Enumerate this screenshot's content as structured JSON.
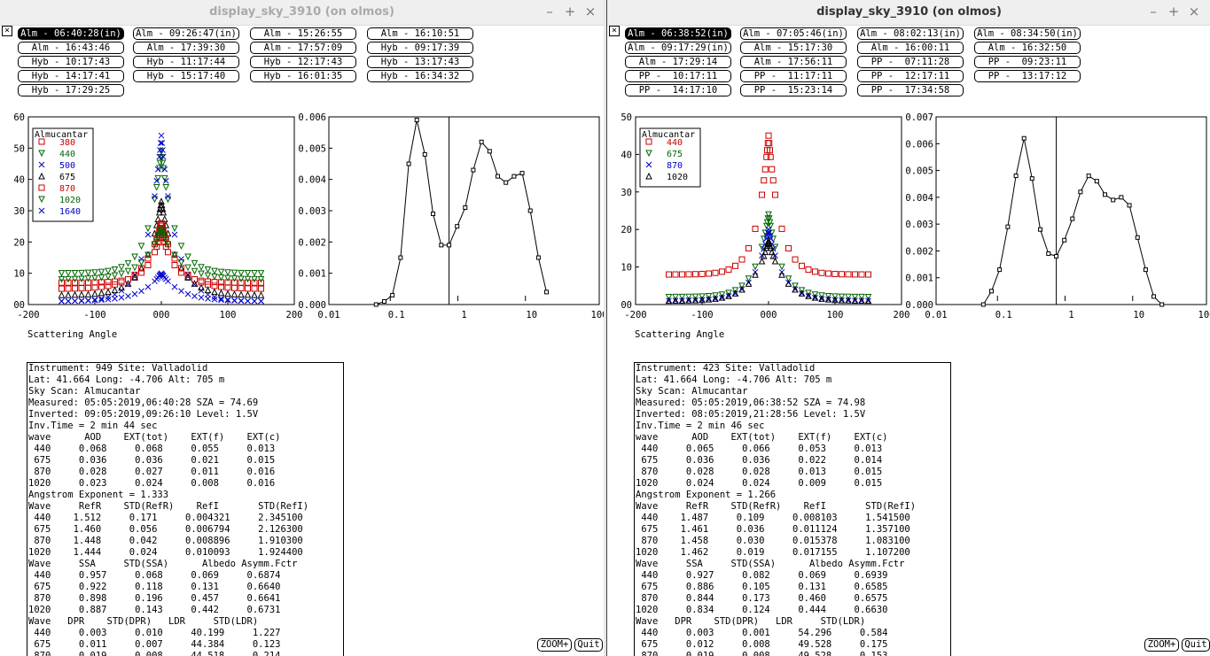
{
  "colors": {
    "red": "#cc0000",
    "green": "#006600",
    "blue": "#0000cc",
    "black": "#000000"
  },
  "windows": [
    {
      "title": "display_sky_3910 (on olmos)",
      "close_glyph": "×",
      "scans": [
        "Alm - 06:40:28(in)",
        "Alm - 09:26:47(in)",
        "Alm - 15:26:55",
        "Alm - 16:10:51",
        "Alm - 16:43:46",
        "Alm - 17:39:30",
        "Alm - 17:57:09",
        "Hyb - 09:17:39",
        "Hyb - 10:17:43",
        "Hyb - 11:17:44",
        "Hyb - 12:17:43",
        "Hyb - 13:17:43",
        "Hyb - 14:17:41",
        "Hyb - 15:17:40",
        "Hyb - 16:01:35",
        "Hyb - 16:34:32",
        "Hyb - 17:29:25"
      ],
      "selected_scan": 0,
      "left_chart": {
        "yticks": [
          "60",
          "50",
          "40",
          "30",
          "20",
          "10",
          "00"
        ],
        "xticks": [
          "-200",
          "-100",
          "000",
          "100",
          "200"
        ],
        "xlabel": "Scattering Angle",
        "legend_title": "Almucantar",
        "legend": [
          "380",
          "440",
          "500",
          "675",
          "870",
          "1020",
          "1640"
        ]
      },
      "right_chart": {
        "yticks": [
          "0.006",
          "0.005",
          "0.004",
          "0.003",
          "0.002",
          "0.001",
          "0.000"
        ],
        "xticks": [
          "0.01",
          "0.1",
          "1",
          "10",
          "100"
        ]
      },
      "info": [
        "Instrument: 949 Site: Valladolid",
        "Lat: 41.664 Long: -4.706 Alt: 705 m",
        "Sky Scan: Almucantar",
        "Measured: 05:05:2019,06:40:28 SZA = 74.69",
        "Inverted: 09:05:2019,09:26:10 Level: 1.5V",
        "Inv.Time = 2 min 44 sec",
        "wave      AOD    EXT(tot)    EXT(f)    EXT(c)",
        " 440     0.068     0.068     0.055     0.013",
        " 675     0.036     0.036     0.021     0.015",
        " 870     0.028     0.027     0.011     0.016",
        "1020     0.023     0.024     0.008     0.016",
        "Angstrom Exponent = 1.333",
        "Wave     RefR    STD(RefR)    RefI       STD(RefI)",
        " 440    1.512     0.171     0.004321     2.345100",
        " 675    1.460     0.056     0.006794     2.126300",
        " 870    1.448     0.042     0.008896     1.910300",
        "1020    1.444     0.024     0.010093     1.924400",
        "Wave     SSA     STD(SSA)      Albedo Asymm.Fctr",
        " 440     0.957     0.068     0.069     0.6874",
        " 675     0.922     0.118     0.131     0.6640",
        " 870     0.898     0.196     0.457     0.6641",
        "1020     0.887     0.143     0.442     0.6731",
        "Wave   DPR    STD(DPR)   LDR     STD(LDR)",
        " 440     0.003     0.010     40.199     1.227",
        " 675     0.011     0.007     44.384     0.123",
        " 870     0.019     0.008     44.518     0.214"
      ],
      "zoom_label": "ZOOM+",
      "quit_label": "Quit"
    },
    {
      "title": "display_sky_3910 (on olmos)",
      "close_glyph": "×",
      "scans": [
        "Alm - 06:38:52(in)",
        "Alm - 07:05:46(in)",
        "Alm - 08:02:13(in)",
        "Alm - 08:34:50(in)",
        "Alm - 09:17:29(in)",
        "Alm - 15:17:30",
        "Alm - 16:00:11",
        "Alm - 16:32:50",
        "Alm - 17:29:14",
        "Alm - 17:56:11",
        "PP -  07:11:28",
        "PP -  09:23:11",
        "PP -  10:17:11",
        "PP -  11:17:11",
        "PP -  12:17:11",
        "PP -  13:17:12",
        "PP -  14:17:10",
        "PP -  15:23:14",
        "PP -  17:34:58"
      ],
      "selected_scan": 0,
      "left_chart": {
        "yticks": [
          "50",
          "40",
          "30",
          "20",
          "10",
          "00"
        ],
        "xticks": [
          "-200",
          "-100",
          "000",
          "100",
          "200"
        ],
        "xlabel": "Scattering Angle",
        "legend_title": "Almucantar",
        "legend": [
          "440",
          "675",
          "870",
          "1020"
        ]
      },
      "right_chart": {
        "yticks": [
          "0.007",
          "0.006",
          "0.005",
          "0.004",
          "0.003",
          "0.002",
          "0.001",
          "0.000"
        ],
        "xticks": [
          "0.01",
          "0.1",
          "1",
          "10",
          "100"
        ]
      },
      "info": [
        "Instrument: 423 Site: Valladolid",
        "Lat: 41.664 Long: -4.706 Alt: 705 m",
        "Sky Scan: Almucantar",
        "Measured: 05:05:2019,06:38:52 SZA = 74.98",
        "Inverted: 08:05:2019,21:28:56 Level: 1.5V",
        "Inv.Time = 2 min 46 sec",
        "wave      AOD    EXT(tot)    EXT(f)    EXT(c)",
        " 440     0.065     0.066     0.053     0.013",
        " 675     0.036     0.036     0.022     0.014",
        " 870     0.028     0.028     0.013     0.015",
        "1020     0.024     0.024     0.009     0.015",
        "Angstrom Exponent = 1.266",
        "Wave     RefR    STD(RefR)    RefI       STD(RefI)",
        " 440    1.487     0.109     0.008103     1.541500",
        " 675    1.461     0.036     0.011124     1.357100",
        " 870    1.458     0.030     0.015378     1.083100",
        "1020    1.462     0.019     0.017155     1.107200",
        "Wave     SSA     STD(SSA)      Albedo Asymm.Fctr",
        " 440     0.927     0.082     0.069     0.6939",
        " 675     0.886     0.105     0.131     0.6585",
        " 870     0.844     0.173     0.460     0.6575",
        "1020     0.834     0.124     0.444     0.6630",
        "Wave   DPR    STD(DPR)   LDR     STD(LDR)",
        " 440     0.003     0.001     54.296     0.584",
        " 675     0.012     0.008     49.528     0.175",
        " 870     0.019     0.008     49.528     0.153"
      ],
      "zoom_label": "ZOOM+",
      "quit_label": "Quit"
    }
  ],
  "chart_data": [
    {
      "type": "scatter",
      "window": "left",
      "xlabel": "Scattering Angle",
      "xlim": [
        -200,
        200
      ],
      "ylim": [
        0,
        60
      ],
      "legend_title": "Almucantar",
      "series": [
        {
          "name": "380",
          "peak": 24,
          "floor": 7,
          "color": "red",
          "marker": "square"
        },
        {
          "name": "440",
          "peak": 49,
          "floor": 10,
          "color": "green",
          "marker": "triangle-down"
        },
        {
          "name": "500",
          "peak": 54,
          "floor": 1,
          "color": "blue",
          "marker": "x"
        },
        {
          "name": "675",
          "peak": 33,
          "floor": 3,
          "color": "black",
          "marker": "triangle-up"
        },
        {
          "name": "870",
          "peak": 26,
          "floor": 5,
          "color": "red",
          "marker": "square"
        },
        {
          "name": "1020",
          "peak": 24,
          "floor": 8,
          "color": "green",
          "marker": "triangle-down"
        },
        {
          "name": "1640",
          "peak": 10,
          "floor": 1,
          "color": "blue",
          "marker": "x"
        }
      ]
    },
    {
      "type": "line",
      "window": "left",
      "xscale": "log",
      "xlim": [
        0.01,
        100
      ],
      "ylim": [
        0,
        0.006
      ],
      "x": [
        0.05,
        0.066,
        0.087,
        0.115,
        0.152,
        0.2,
        0.263,
        0.348,
        0.46,
        0.6,
        0.79,
        1.04,
        1.37,
        1.81,
        2.39,
        3.15,
        4.16,
        5.49,
        7.24,
        9.55,
        12.6,
        16.6
      ],
      "y": [
        0.0,
        0.0001,
        0.0003,
        0.0015,
        0.0045,
        0.0059,
        0.0048,
        0.0029,
        0.0019,
        0.0019,
        0.0025,
        0.0031,
        0.0043,
        0.0052,
        0.0049,
        0.0041,
        0.0039,
        0.0041,
        0.0042,
        0.003,
        0.0015,
        0.0004
      ]
    },
    {
      "type": "scatter",
      "window": "right",
      "xlabel": "Scattering Angle",
      "xlim": [
        -200,
        200
      ],
      "ylim": [
        0,
        50
      ],
      "legend_title": "Almucantar",
      "series": [
        {
          "name": "440",
          "peak": 45,
          "floor": 8,
          "color": "red",
          "marker": "square"
        },
        {
          "name": "675",
          "peak": 24,
          "floor": 2,
          "color": "green",
          "marker": "triangle-down"
        },
        {
          "name": "870",
          "peak": 20,
          "floor": 1,
          "color": "blue",
          "marker": "x"
        },
        {
          "name": "1020",
          "peak": 17,
          "floor": 1,
          "color": "black",
          "marker": "triangle-up"
        }
      ]
    },
    {
      "type": "line",
      "window": "right",
      "xscale": "log",
      "xlim": [
        0.01,
        100
      ],
      "ylim": [
        0,
        0.007
      ],
      "x": [
        0.05,
        0.066,
        0.087,
        0.115,
        0.152,
        0.2,
        0.263,
        0.348,
        0.46,
        0.6,
        0.79,
        1.04,
        1.37,
        1.81,
        2.39,
        3.15,
        4.16,
        5.49,
        7.24,
        9.55,
        12.6,
        16.6,
        21.9
      ],
      "y": [
        0.0,
        0.0005,
        0.0013,
        0.0029,
        0.0048,
        0.0062,
        0.0047,
        0.0028,
        0.0019,
        0.0018,
        0.0024,
        0.0032,
        0.0042,
        0.0048,
        0.0046,
        0.0041,
        0.0039,
        0.004,
        0.0037,
        0.0025,
        0.0013,
        0.0003,
        0.0
      ]
    }
  ]
}
